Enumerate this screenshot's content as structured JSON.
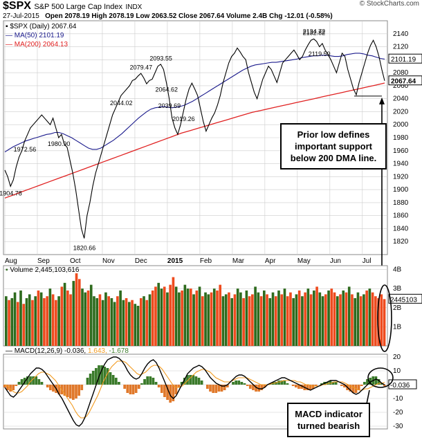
{
  "header": {
    "symbol": "$SPX",
    "name": "S&P 500 Large Cap Index",
    "exchange": "INDX",
    "date": "27-Jul-2015",
    "ohlc": "Open 2078.19  High 2078.19  Low 2063.52  Close 2067.64  Volume 2.4B  Chg -12.01 (-0.58%)",
    "brand": "© StockCharts.com"
  },
  "legend": {
    "daily": "$SPX (Daily) 2067.64",
    "ma50": "MA(50) 2101.19",
    "ma200": "MA(200) 2064.13"
  },
  "volume_label": "Volume 2,445,103,616",
  "macd_label_prefix": "MACD(12,26,9) -0.036,",
  "macd_label_signal": "1.643,",
  "macd_label_hist": "-1.678",
  "callouts": {
    "support": "Prior low defines important support below 200 DMA line.",
    "macd": "MACD indicator turned bearish"
  },
  "colors": {
    "price": "#000000",
    "ma50": "#1a1a8c",
    "ma200": "#e02020",
    "vol_up": "#2e6b1e",
    "vol_down": "#ee4b1e",
    "macd": "#000000",
    "signal": "#f29a1e",
    "hist_pos": "#3a7a2a",
    "hist_neg": "#e0782a",
    "grid": "#cccccc"
  },
  "chart_data": [
    {
      "type": "line",
      "title": "$SPX S&P 500 Large Cap Index",
      "ylim": [
        1800,
        2160
      ],
      "y_ticks": [
        1820,
        1840,
        1860,
        1880,
        1900,
        1920,
        1940,
        1960,
        1980,
        2000,
        2020,
        2040,
        2060,
        2080,
        2100,
        2120,
        2140
      ],
      "x_ticks": [
        "Aug",
        "Sep",
        "Oct",
        "Nov",
        "Dec",
        "2015",
        "Feb",
        "Mar",
        "Apr",
        "May",
        "Jun",
        "Jul"
      ],
      "annotations": [
        {
          "label": "1904.78",
          "value": 1904.78
        },
        {
          "label": "2019.26",
          "value": 2019.26
        },
        {
          "label": "1820.66",
          "value": 1820.66
        },
        {
          "label": "2079.47",
          "value": 2079.47
        },
        {
          "label": "2093.55",
          "value": 2093.55
        },
        {
          "label": "1972.56",
          "value": 1972.56
        },
        {
          "label": "2064.62",
          "value": 2064.62
        },
        {
          "label": "1980.90",
          "value": 1980.9
        },
        {
          "label": "2119.59",
          "value": 2119.59
        },
        {
          "label": "2039.69",
          "value": 2039.69
        },
        {
          "label": "2134.72",
          "value": 2134.72
        },
        {
          "label": "2132.82",
          "value": 2132.82
        },
        {
          "label": "2044.02",
          "value": 2044.02
        }
      ],
      "price_tags": [
        {
          "label": "2101.19",
          "value": 2101.19
        },
        {
          "label": "2067.64",
          "value": 2067.64
        }
      ],
      "series": [
        {
          "name": "$SPX (Daily)",
          "values": [
            1930,
            1920,
            1905,
            1915,
            1935,
            1950,
            1960,
            1975,
            1985,
            1995,
            2000,
            2005,
            2010,
            2015,
            2010,
            2005,
            2000,
            2010,
            1995,
            1980,
            1985,
            1970,
            1965,
            1945,
            1925,
            1900,
            1870,
            1840,
            1825,
            1860,
            1880,
            1905,
            1925,
            1940,
            1955,
            1970,
            1985,
            2000,
            2015,
            2025,
            2035,
            2045,
            2050,
            2055,
            2060,
            2068,
            2070,
            2075,
            2079,
            2072,
            2063,
            2068,
            2070,
            2080,
            2090,
            2093,
            2085,
            2065,
            2040,
            2010,
            1995,
            1985,
            2000,
            2020,
            2040,
            2055,
            2064,
            2055,
            2045,
            2025,
            2005,
            1990,
            2000,
            2010,
            2018,
            2030,
            2045,
            2065,
            2080,
            2095,
            2105,
            2110,
            2118,
            2112,
            2105,
            2100,
            2080,
            2065,
            2050,
            2040,
            2055,
            2070,
            2080,
            2090,
            2085,
            2075,
            2065,
            2080,
            2095,
            2100,
            2105,
            2110,
            2115,
            2108,
            2100,
            2105,
            2115,
            2123,
            2130,
            2132,
            2128,
            2120,
            2125,
            2115,
            2108,
            2100,
            2090,
            2080,
            2095,
            2110,
            2105,
            2085,
            2070,
            2055,
            2046,
            2065,
            2080,
            2095,
            2110,
            2122,
            2130,
            2120,
            2105,
            2085,
            2067.64
          ]
        },
        {
          "name": "MA(50)",
          "values": [
            1958,
            1962,
            1966,
            1969,
            1972,
            1975,
            1977,
            1979,
            1981,
            1983,
            1985,
            1986,
            1988,
            1988,
            1986,
            1983,
            1980,
            1976,
            1972,
            1968,
            1964,
            1962,
            1962,
            1964,
            1968,
            1972,
            1976,
            1981,
            1986,
            1992,
            1998,
            2004,
            2010,
            2015,
            2020,
            2024,
            2026,
            2027,
            2028,
            2027,
            2026,
            2027,
            2028,
            2030,
            2033,
            2036,
            2040,
            2044,
            2048,
            2052,
            2056,
            2060,
            2064,
            2068,
            2072,
            2076,
            2080,
            2084,
            2087,
            2090,
            2092,
            2093,
            2094,
            2095,
            2096,
            2096,
            2097,
            2098,
            2099,
            2100,
            2101,
            2103,
            2104,
            2105,
            2106,
            2106,
            2107,
            2107,
            2106,
            2105,
            2105,
            2106,
            2108,
            2109,
            2110,
            2110,
            2109,
            2107,
            2106,
            2104,
            2102,
            2101
          ]
        },
        {
          "name": "MA(200)",
          "values": [
            1887,
            1892,
            1897,
            1902,
            1907,
            1912,
            1917,
            1922,
            1927,
            1932,
            1937,
            1942,
            1947,
            1952,
            1957,
            1962,
            1967,
            1972,
            1977,
            1982,
            1987,
            1991,
            1995,
            1999,
            2003,
            2007,
            2011,
            2015,
            2019,
            2022,
            2025,
            2028,
            2031,
            2034,
            2037,
            2040,
            2043,
            2046,
            2049,
            2052,
            2055,
            2058,
            2061,
            2064.13
          ]
        }
      ]
    },
    {
      "type": "bar",
      "title": "Volume 2,445,103,616",
      "ylim": [
        0,
        4.2
      ],
      "y_ticks": [
        {
          "label": "1B",
          "value": 1
        },
        {
          "label": "2B",
          "value": 2
        },
        {
          "label": "3B",
          "value": 3
        },
        {
          "label": "4B",
          "value": 4
        }
      ],
      "last_value_label": "2445103",
      "values": [
        2.6,
        2.4,
        2.5,
        2.8,
        2.3,
        2.9,
        2.2,
        2.5,
        2.7,
        2.4,
        2.6,
        2.9,
        2.8,
        2.5,
        2.6,
        3.0,
        2.7,
        2.4,
        2.6,
        3.1,
        3.3,
        2.9,
        2.7,
        3.4,
        3.8,
        3.5,
        3.0,
        2.8,
        2.9,
        3.2,
        2.6,
        2.5,
        2.7,
        2.4,
        2.8,
        2.6,
        2.5,
        2.3,
        2.6,
        2.9,
        2.4,
        2.5,
        2.3,
        2.4,
        2.2,
        2.1,
        2.5,
        2.6,
        2.4,
        2.7,
        2.9,
        3.1,
        3.3,
        3.0,
        3.1,
        2.8,
        3.2,
        3.6,
        3.1,
        2.8,
        2.9,
        3.2,
        3.0,
        3.0,
        2.7,
        2.9,
        3.1,
        2.6,
        2.8,
        2.7,
        2.8,
        3.0,
        2.9,
        3.2,
        2.6,
        2.7,
        2.8,
        2.5,
        2.7,
        3.0,
        2.8,
        2.5,
        2.9,
        2.6,
        2.7,
        3.1,
        2.8,
        2.6,
        2.9,
        2.7,
        2.5,
        2.8,
        2.6,
        2.9,
        2.7,
        3.0,
        2.6,
        2.8,
        2.5,
        2.7,
        2.9,
        2.6,
        2.8,
        3.0,
        2.7,
        2.9,
        3.1,
        2.8,
        2.6,
        2.7,
        2.9,
        3.0,
        2.8,
        2.6,
        2.7,
        2.9,
        2.8,
        3.1,
        2.7,
        2.5,
        2.8,
        2.6,
        2.7,
        2.9,
        3.0,
        2.8,
        2.6,
        2.5,
        2.7,
        2.45
      ],
      "up": [
        1,
        0,
        1,
        1,
        0,
        1,
        0,
        1,
        1,
        0,
        1,
        0,
        1,
        0,
        0,
        1,
        0,
        0,
        1,
        0,
        1,
        0,
        0,
        1,
        0,
        0,
        1,
        1,
        0,
        1,
        1,
        1,
        0,
        1,
        1,
        0,
        1,
        1,
        0,
        1,
        1,
        0,
        1,
        0,
        1,
        1,
        0,
        1,
        0,
        1,
        0,
        0,
        1,
        1,
        0,
        1,
        0,
        0,
        1,
        1,
        0,
        1,
        1,
        0,
        1,
        0,
        1,
        0,
        1,
        1,
        0,
        1,
        0,
        0,
        1,
        1,
        0,
        1,
        0,
        1,
        1,
        0,
        1,
        0,
        0,
        1,
        1,
        0,
        1,
        0,
        1,
        1,
        0,
        1,
        0,
        1,
        0,
        0,
        1,
        1,
        0,
        1,
        0,
        1,
        0,
        1,
        0,
        1,
        1,
        0,
        1,
        0,
        0,
        1,
        0,
        1,
        0,
        1,
        0,
        1,
        1,
        0,
        1,
        0,
        1,
        0,
        0,
        0,
        0,
        0
      ]
    },
    {
      "type": "line",
      "title": "MACD(12,26,9) -0.036, 1.643, -1.678",
      "ylim": [
        -32,
        22
      ],
      "y_ticks": [
        -30,
        -20,
        -10,
        0,
        10,
        20
      ],
      "value_tag": "-0.036",
      "series": [
        {
          "name": "MACD",
          "values": [
            -2,
            -5,
            -8,
            -9,
            -7,
            -4,
            -1,
            2,
            5,
            8,
            10,
            12,
            12,
            11,
            9,
            6,
            3,
            0,
            -3,
            -7,
            -10,
            -14,
            -18,
            -22,
            -26,
            -29,
            -30,
            -28,
            -24,
            -18,
            -12,
            -6,
            0,
            6,
            11,
            15,
            18,
            19,
            20,
            20,
            19,
            17,
            14,
            10,
            7,
            5,
            4,
            5,
            8,
            12,
            15,
            17,
            18,
            16,
            12,
            7,
            2,
            -3,
            -8,
            -10,
            -8,
            -4,
            0,
            4,
            8,
            10,
            12,
            13,
            14,
            13,
            11,
            8,
            5,
            3,
            1,
            0,
            -1,
            -1,
            0,
            2,
            4,
            6,
            7,
            7,
            6,
            4,
            2,
            0,
            -2,
            -3,
            -3,
            -2,
            0,
            1,
            2,
            3,
            4,
            5,
            5,
            4,
            3,
            2,
            1,
            0,
            -1,
            -2,
            -3,
            -4,
            -3,
            -2,
            -1,
            0,
            1,
            2,
            3,
            3,
            3,
            2,
            1,
            0,
            -2,
            -4,
            -6,
            -7,
            -6,
            -4,
            -2,
            0,
            2,
            3,
            4,
            3,
            1,
            -0.036
          ]
        },
        {
          "name": "Signal",
          "values": [
            0,
            -1,
            -3,
            -5,
            -6,
            -6,
            -5,
            -3,
            -1,
            2,
            4,
            6,
            8,
            9,
            9,
            8,
            7,
            5,
            3,
            0,
            -3,
            -6,
            -9,
            -12,
            -15,
            -19,
            -22,
            -24,
            -24,
            -23,
            -20,
            -16,
            -12,
            -8,
            -3,
            2,
            6,
            10,
            13,
            15,
            17,
            17,
            17,
            16,
            14,
            12,
            10,
            8,
            7,
            8,
            9,
            11,
            13,
            14,
            14,
            13,
            11,
            8,
            5,
            2,
            -1,
            -2,
            -2,
            -1,
            1,
            3,
            5,
            7,
            9,
            10,
            11,
            11,
            10,
            9,
            7,
            5,
            4,
            3,
            2,
            2,
            2,
            3,
            4,
            5,
            5,
            5,
            5,
            4,
            3,
            2,
            1,
            0,
            0,
            0,
            0,
            1,
            1,
            2,
            2,
            3,
            3,
            3,
            3,
            3,
            2,
            2,
            1,
            0,
            0,
            -1,
            -1,
            -1,
            -1,
            0,
            0,
            1,
            1,
            2,
            2,
            2,
            2,
            1,
            0,
            -1,
            -2,
            -3,
            -4,
            -4,
            -3,
            -3,
            -2,
            -1,
            0,
            1,
            1,
            1.643
          ]
        }
      ]
    }
  ]
}
